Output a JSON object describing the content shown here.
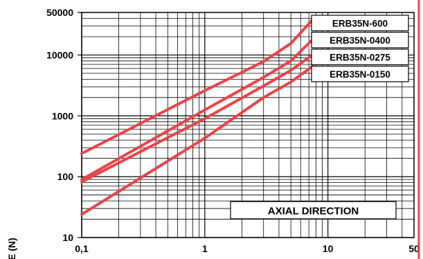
{
  "chart_data": {
    "type": "line",
    "title": "",
    "ylabel": "E (N)",
    "xlabel": "",
    "x_scale": "log",
    "y_scale": "log",
    "xlim": [
      0.1,
      50
    ],
    "ylim": [
      10,
      50000
    ],
    "grid": true,
    "legend_position": "top-right",
    "x_ticks": [
      {
        "value": 0.1,
        "label": "0,1"
      },
      {
        "value": 1,
        "label": "1"
      },
      {
        "value": 10,
        "label": "10"
      },
      {
        "value": 50,
        "label": "50"
      }
    ],
    "y_ticks": [
      {
        "value": 10,
        "label": "10"
      },
      {
        "value": 100,
        "label": "100"
      },
      {
        "value": 1000,
        "label": "1000"
      },
      {
        "value": 10000,
        "label": "10000"
      },
      {
        "value": 50000,
        "label": "50000"
      }
    ],
    "annotation": "AXIAL DIRECTION",
    "series_color": "#e84448",
    "series": [
      {
        "name": "ERB35N-600",
        "x": [
          0.1,
          1,
          3,
          5,
          7.5
        ],
        "y": [
          240,
          2600,
          7800,
          15500,
          38000
        ]
      },
      {
        "name": "ERB35N-0400",
        "x": [
          0.1,
          1,
          3,
          5,
          7.5
        ],
        "y": [
          90,
          1250,
          4300,
          8000,
          18000
        ]
      },
      {
        "name": "ERB35N-0275",
        "x": [
          0.1,
          1,
          3,
          5,
          7.5
        ],
        "y": [
          82,
          900,
          3100,
          5600,
          10000
        ]
      },
      {
        "name": "ERB35N-0150",
        "x": [
          0.1,
          1,
          3,
          5,
          7.5
        ],
        "y": [
          24,
          430,
          2000,
          3600,
          6500
        ]
      }
    ]
  },
  "colors": {
    "frame": "#e8444a",
    "grid": "#000000",
    "legend_border": "#000000"
  }
}
